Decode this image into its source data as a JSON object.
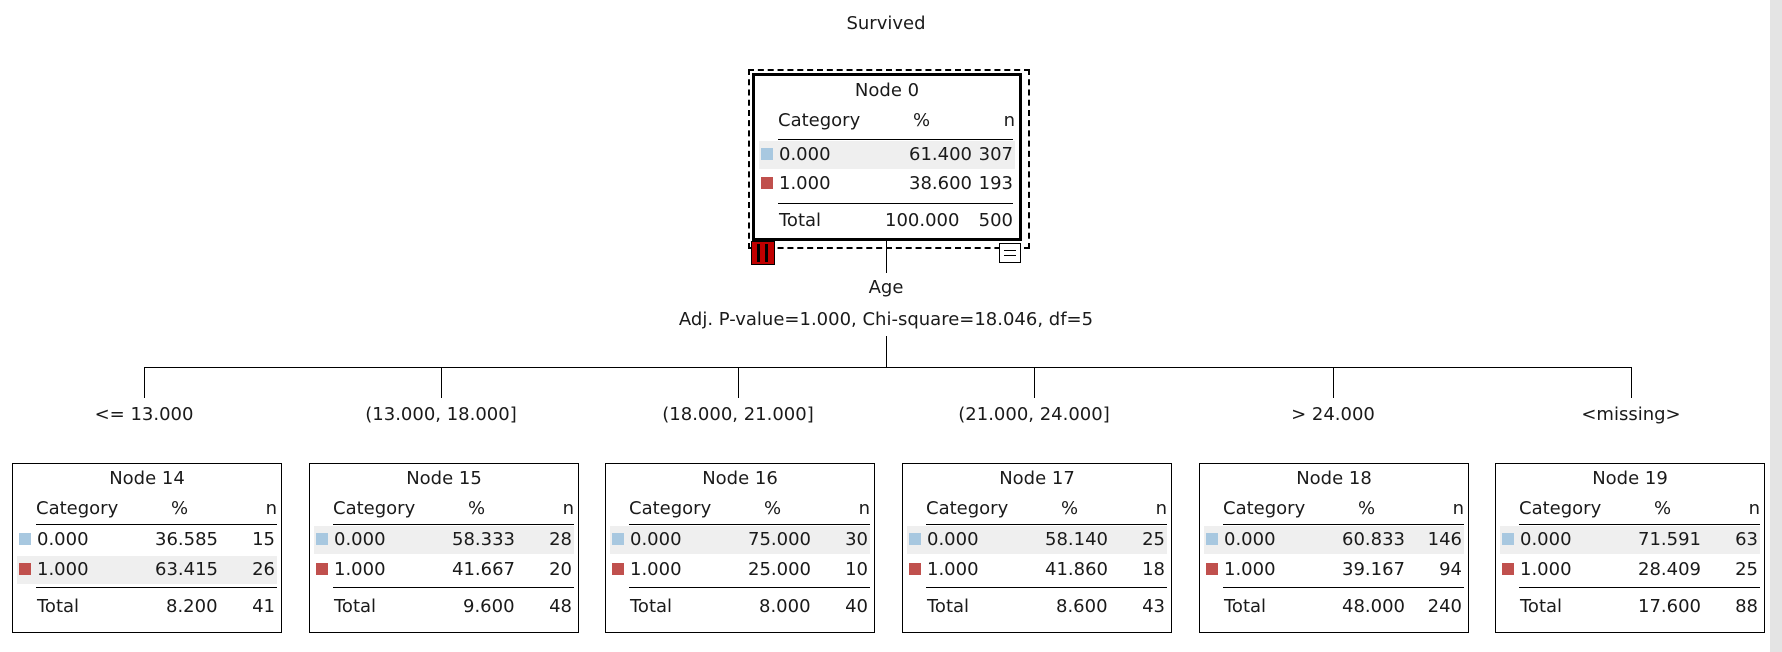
{
  "title": "Survived",
  "root": {
    "name": "Node 0",
    "headers": {
      "category": "Category",
      "pct": "%",
      "n": "n"
    },
    "rows": [
      {
        "category": "0.000",
        "pct": "61.400",
        "n": "307",
        "color": "#a8c8e0"
      },
      {
        "category": "1.000",
        "pct": "38.600",
        "n": "193",
        "color": "#c0504d"
      }
    ],
    "total": {
      "label": "Total",
      "pct": "100.000",
      "n": "500"
    }
  },
  "split": {
    "variable": "Age",
    "stats": "Adj. P-value=1.000, Chi-square=18.046, df=5"
  },
  "children": [
    {
      "edge": "<= 13.000",
      "name": "Node 14",
      "rows": [
        {
          "category": "0.000",
          "pct": "36.585",
          "n": "15"
        },
        {
          "category": "1.000",
          "pct": "63.415",
          "n": "26"
        }
      ],
      "total": {
        "label": "Total",
        "pct": "8.200",
        "n": "41"
      }
    },
    {
      "edge": "(13.000, 18.000]",
      "name": "Node 15",
      "rows": [
        {
          "category": "0.000",
          "pct": "58.333",
          "n": "28"
        },
        {
          "category": "1.000",
          "pct": "41.667",
          "n": "20"
        }
      ],
      "total": {
        "label": "Total",
        "pct": "9.600",
        "n": "48"
      }
    },
    {
      "edge": "(18.000, 21.000]",
      "name": "Node 16",
      "rows": [
        {
          "category": "0.000",
          "pct": "75.000",
          "n": "30"
        },
        {
          "category": "1.000",
          "pct": "25.000",
          "n": "10"
        }
      ],
      "total": {
        "label": "Total",
        "pct": "8.000",
        "n": "40"
      }
    },
    {
      "edge": "(21.000, 24.000]",
      "name": "Node 17",
      "rows": [
        {
          "category": "0.000",
          "pct": "58.140",
          "n": "25"
        },
        {
          "category": "1.000",
          "pct": "41.860",
          "n": "18"
        }
      ],
      "total": {
        "label": "Total",
        "pct": "8.600",
        "n": "43"
      }
    },
    {
      "edge": "> 24.000",
      "name": "Node 18",
      "rows": [
        {
          "category": "0.000",
          "pct": "60.833",
          "n": "146"
        },
        {
          "category": "1.000",
          "pct": "39.167",
          "n": "94"
        }
      ],
      "total": {
        "label": "Total",
        "pct": "48.000",
        "n": "240"
      }
    },
    {
      "edge": "<missing>",
      "name": "Node 19",
      "rows": [
        {
          "category": "0.000",
          "pct": "71.591",
          "n": "63"
        },
        {
          "category": "1.000",
          "pct": "28.409",
          "n": "25"
        }
      ],
      "total": {
        "label": "Total",
        "pct": "17.600",
        "n": "88"
      }
    }
  ],
  "colors": {
    "category_0": "#a8c8e0",
    "category_1": "#c0504d"
  },
  "icons": {
    "bar": "bar-chart-icon",
    "table": "table-icon"
  }
}
